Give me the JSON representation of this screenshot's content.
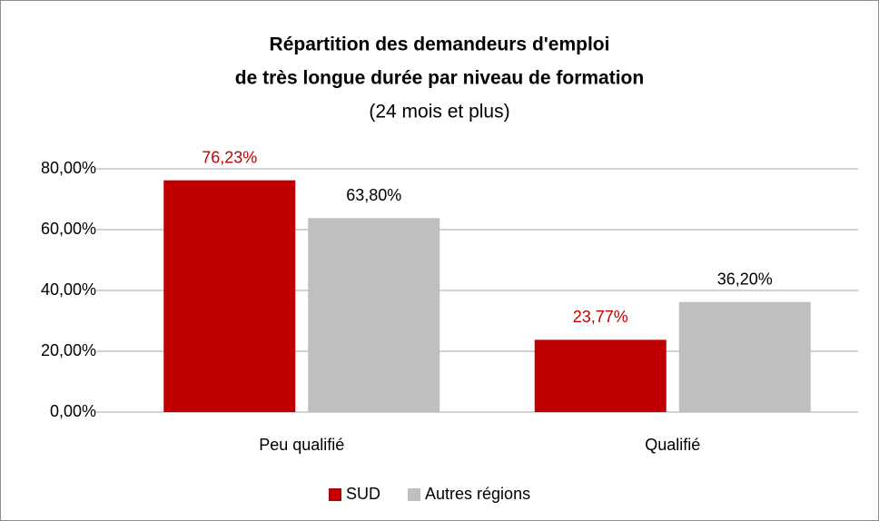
{
  "chart_data": {
    "type": "bar",
    "title": [
      "Répartition des demandeurs d'emploi",
      "de très longue durée par niveau de formation"
    ],
    "subtitle": "(24 mois et plus)",
    "categories": [
      "Peu qualifié",
      "Qualifié"
    ],
    "series": [
      {
        "name": "SUD",
        "color": "#c00000",
        "label_color": "#c00000",
        "values": [
          76.23,
          23.77
        ],
        "value_labels": [
          "76,23%",
          "23,77%"
        ]
      },
      {
        "name": "Autres régions",
        "color": "#bfbfbf",
        "label_color": "#000000",
        "values": [
          63.8,
          36.2
        ],
        "value_labels": [
          "63,80%",
          "36,20%"
        ]
      }
    ],
    "ylim": [
      0,
      80
    ],
    "yticks": [
      {
        "value": 0,
        "label": "0,00%"
      },
      {
        "value": 20,
        "label": "20,00%"
      },
      {
        "value": 40,
        "label": "40,00%"
      },
      {
        "value": 60,
        "label": "60,00%"
      },
      {
        "value": 80,
        "label": "80,00%"
      }
    ],
    "grid": true,
    "legend": "bottom"
  }
}
